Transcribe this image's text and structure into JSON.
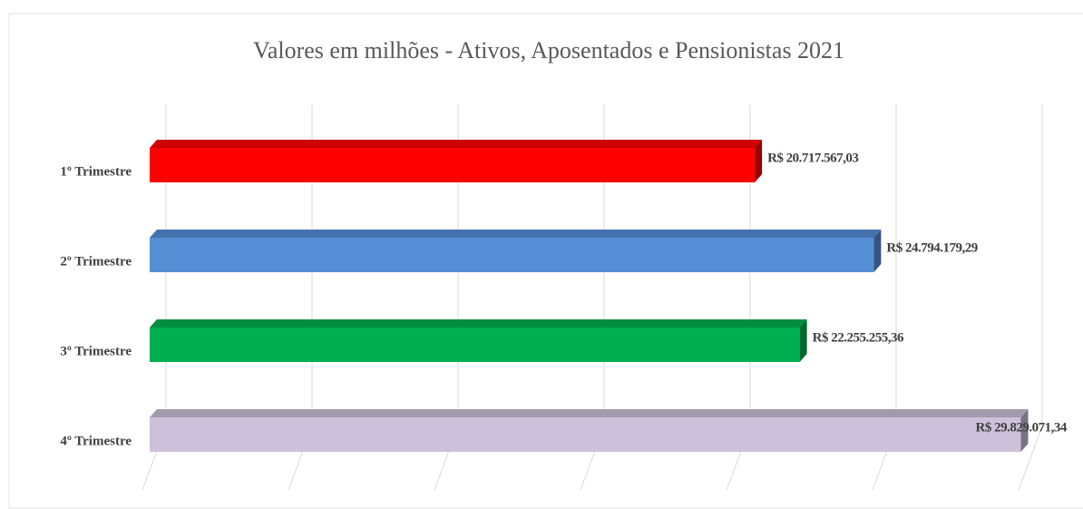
{
  "chart_data": {
    "type": "bar3d-horizontal",
    "title": "Valores em milhões - Ativos, Aposentados e Pensionistas 2021",
    "categories": [
      "1º Trimestre",
      "2º Trimestre",
      "3º Trimestre",
      "4º Trimestre"
    ],
    "values": [
      20717567.03,
      24794179.29,
      22255255.36,
      29829071.34
    ],
    "value_labels": [
      "R$ 20.717.567,03",
      "R$ 24.794.179,29",
      "R$ 22.255.255,36",
      "R$ 29.829.071,34"
    ],
    "colors": [
      "#ff0000",
      "#558ed5",
      "#00b050",
      "#ccc0da"
    ],
    "xlim": [
      0,
      30000000
    ],
    "xticks": [
      0,
      5000000,
      10000000,
      15000000,
      20000000,
      25000000,
      30000000
    ],
    "grid": true
  }
}
